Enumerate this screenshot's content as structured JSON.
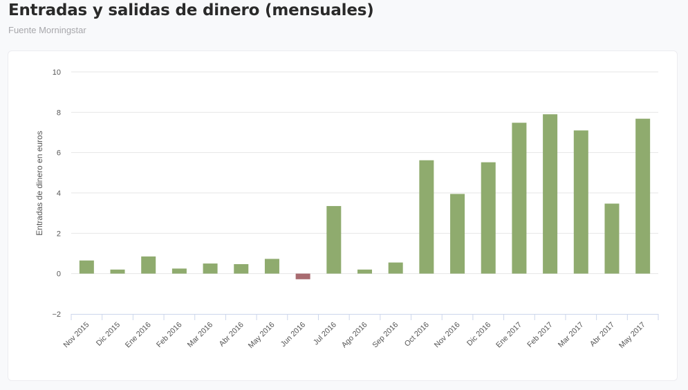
{
  "header": {
    "title": "Entradas y salidas de dinero (mensuales)",
    "subtitle": "Fuente Morningstar"
  },
  "colors": {
    "positive": "#8fab6e",
    "negative": "#a86b70",
    "grid": "#e6e6e6",
    "axis": "#ccd6eb",
    "tick_text": "#555555"
  },
  "chart_data": {
    "type": "bar",
    "title": "",
    "xlabel": "",
    "ylabel": "Entradas de dinero en euros",
    "ylim": [
      -2,
      10
    ],
    "yticks": [
      10,
      8,
      6,
      4,
      2,
      0,
      -2
    ],
    "ytick_labels": [
      "10",
      "8",
      "6",
      "4",
      "2",
      "0",
      "−2"
    ],
    "grid": true,
    "legend": "none",
    "categories": [
      "Nov 2015",
      "Dic 2015",
      "Ene 2016",
      "Feb 2016",
      "Mar 2016",
      "Abr 2016",
      "May 2016",
      "Jun 2016",
      "Jul 2016",
      "Ago 2016",
      "Sep 2016",
      "Oct 2016",
      "Nov 2016",
      "Dic 2016",
      "Ene 2017",
      "Feb 2017",
      "Mar 2017",
      "Abr 2017",
      "May 2017"
    ],
    "values": [
      0.65,
      0.2,
      0.85,
      0.25,
      0.5,
      0.47,
      0.73,
      -0.28,
      3.35,
      0.2,
      0.55,
      5.62,
      3.95,
      5.52,
      7.48,
      7.9,
      7.1,
      3.47,
      7.68
    ]
  }
}
